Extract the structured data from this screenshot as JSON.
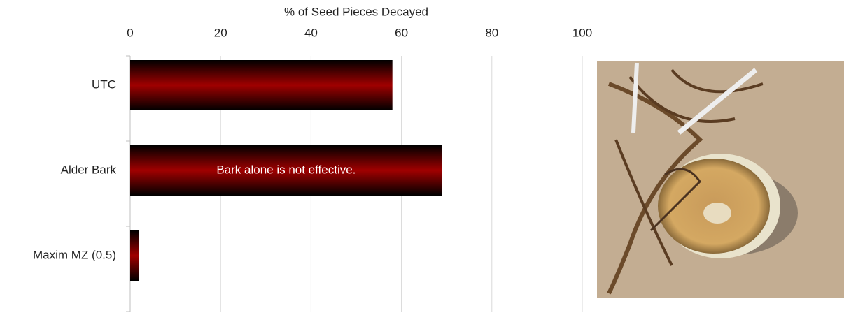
{
  "chart_data": {
    "type": "bar",
    "orientation": "horizontal",
    "x_label": "% of Seed Pieces Decayed",
    "categories": [
      "UTC",
      "Alder Bark",
      "Maxim MZ (0.5)"
    ],
    "values": [
      58,
      69,
      2
    ],
    "color": "#a00000",
    "xlim": [
      0,
      100
    ],
    "xticks": [
      0,
      20,
      40,
      60,
      80,
      100
    ],
    "grid": true,
    "annotation": "Bark alone is not effective."
  }
}
